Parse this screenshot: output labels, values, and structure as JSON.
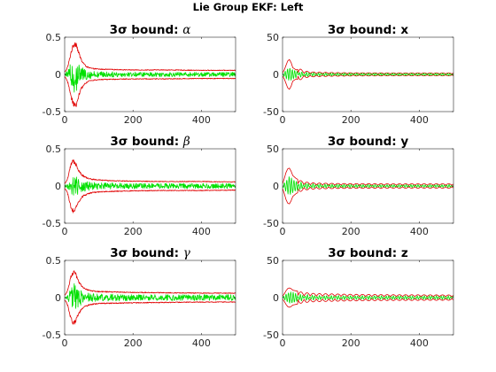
{
  "figure": {
    "title": "Lie Group EKF: Left"
  },
  "colors": {
    "bound": "#e00000",
    "error": "#00e000",
    "axes": "#262626",
    "background": "#ffffff"
  },
  "chart_data": [
    {
      "type": "line",
      "title_prefix": "3σ bound: ",
      "title_symbol": "α",
      "symbol_italic": true,
      "xlim": [
        0,
        500
      ],
      "ylim": [
        -0.5,
        0.5
      ],
      "xticks": [
        0,
        200,
        400
      ],
      "xtick_labels": [
        "0",
        "200",
        "400"
      ],
      "yticks": [
        -0.5,
        0,
        0.5
      ],
      "ytick_labels": [
        "-0.5",
        "0",
        "0.5"
      ],
      "bound": {
        "x": [
          0,
          5,
          10,
          15,
          20,
          25,
          30,
          35,
          40,
          50,
          60,
          70,
          80,
          100,
          150,
          200,
          300,
          400,
          500
        ],
        "y": [
          0.03,
          0.06,
          0.12,
          0.22,
          0.32,
          0.38,
          0.42,
          0.4,
          0.3,
          0.18,
          0.12,
          0.09,
          0.08,
          0.07,
          0.065,
          0.06,
          0.06,
          0.055,
          0.055
        ]
      },
      "error": {
        "x": [
          0,
          10,
          20,
          25,
          30,
          35,
          40,
          50,
          60,
          80,
          100,
          150,
          200,
          300,
          400,
          500
        ],
        "amp": [
          0.01,
          0.06,
          0.18,
          0.24,
          0.28,
          0.24,
          0.14,
          0.1,
          0.08,
          0.05,
          0.04,
          0.035,
          0.03,
          0.03,
          0.03,
          0.03
        ]
      },
      "style": "noisy"
    },
    {
      "type": "line",
      "title_prefix": "3σ bound: ",
      "title_symbol": "x",
      "symbol_italic": false,
      "xlim": [
        0,
        500
      ],
      "ylim": [
        -50,
        50
      ],
      "xticks": [
        0,
        200,
        400
      ],
      "xtick_labels": [
        "0",
        "200",
        "400"
      ],
      "yticks": [
        -50,
        0,
        50
      ],
      "ytick_labels": [
        "-50",
        "0",
        "50"
      ],
      "bound": {
        "x": [
          0,
          5,
          10,
          15,
          20,
          25,
          30,
          40,
          50,
          60,
          80,
          100,
          150,
          200,
          300,
          400,
          500
        ],
        "y": [
          2,
          6,
          12,
          18,
          20,
          16,
          9,
          6,
          8,
          5,
          3.5,
          3,
          2.5,
          2.2,
          2,
          2,
          2
        ]
      },
      "error": {
        "x": [
          0,
          10,
          20,
          30,
          40,
          60,
          80,
          100,
          200,
          300,
          500
        ],
        "amp": [
          1,
          6,
          10,
          7,
          5,
          4,
          3,
          2.5,
          2,
          1.8,
          1.8
        ]
      },
      "style": "oscillating"
    },
    {
      "type": "line",
      "title_prefix": "3σ bound: ",
      "title_symbol": "β",
      "symbol_italic": true,
      "xlim": [
        0,
        500
      ],
      "ylim": [
        -0.5,
        0.5
      ],
      "xticks": [
        0,
        200,
        400
      ],
      "xtick_labels": [
        "0",
        "200",
        "400"
      ],
      "yticks": [
        -0.5,
        0,
        0.5
      ],
      "ytick_labels": [
        "-0.5",
        "0",
        "0.5"
      ],
      "bound": {
        "x": [
          0,
          5,
          10,
          15,
          20,
          25,
          30,
          35,
          40,
          50,
          60,
          70,
          80,
          100,
          150,
          200,
          300,
          400,
          500
        ],
        "y": [
          0.03,
          0.06,
          0.12,
          0.22,
          0.3,
          0.33,
          0.32,
          0.28,
          0.22,
          0.15,
          0.12,
          0.1,
          0.09,
          0.08,
          0.07,
          0.065,
          0.06,
          0.06,
          0.055
        ]
      },
      "error": {
        "x": [
          0,
          10,
          20,
          25,
          30,
          35,
          40,
          50,
          60,
          80,
          100,
          150,
          200,
          300,
          400,
          500
        ],
        "amp": [
          0.01,
          0.05,
          0.12,
          0.15,
          0.16,
          0.14,
          0.1,
          0.08,
          0.07,
          0.05,
          0.045,
          0.04,
          0.035,
          0.035,
          0.035,
          0.035
        ]
      },
      "style": "noisy"
    },
    {
      "type": "line",
      "title_prefix": "3σ bound: ",
      "title_symbol": "y",
      "symbol_italic": false,
      "xlim": [
        0,
        500
      ],
      "ylim": [
        -50,
        50
      ],
      "xticks": [
        0,
        200,
        400
      ],
      "xtick_labels": [
        "0",
        "200",
        "400"
      ],
      "yticks": [
        -50,
        0,
        50
      ],
      "ytick_labels": [
        "-50",
        "0",
        "50"
      ],
      "bound": {
        "x": [
          0,
          5,
          10,
          15,
          20,
          25,
          30,
          40,
          50,
          60,
          80,
          100,
          150,
          200,
          300,
          400,
          500
        ],
        "y": [
          3,
          10,
          18,
          23,
          24,
          20,
          14,
          10,
          8,
          6,
          4.5,
          4,
          3.5,
          3.2,
          3,
          3,
          3
        ]
      },
      "error": {
        "x": [
          0,
          10,
          20,
          30,
          40,
          60,
          80,
          100,
          200,
          300,
          500
        ],
        "amp": [
          1,
          8,
          14,
          10,
          7,
          5,
          4,
          3,
          2.5,
          2.2,
          2.2
        ]
      },
      "style": "oscillating"
    },
    {
      "type": "line",
      "title_prefix": "3σ bound: ",
      "title_symbol": "γ",
      "symbol_italic": true,
      "xlim": [
        0,
        500
      ],
      "ylim": [
        -0.5,
        0.5
      ],
      "xticks": [
        0,
        200,
        400
      ],
      "xtick_labels": [
        "0",
        "200",
        "400"
      ],
      "yticks": [
        -0.5,
        0,
        0.5
      ],
      "ytick_labels": [
        "-0.5",
        "0",
        "0.5"
      ],
      "bound": {
        "x": [
          0,
          5,
          10,
          15,
          20,
          25,
          30,
          35,
          40,
          50,
          60,
          70,
          80,
          100,
          150,
          200,
          300,
          400,
          500
        ],
        "y": [
          0.03,
          0.06,
          0.12,
          0.22,
          0.3,
          0.34,
          0.33,
          0.28,
          0.22,
          0.15,
          0.12,
          0.1,
          0.09,
          0.08,
          0.075,
          0.07,
          0.065,
          0.06,
          0.06
        ]
      },
      "error": {
        "x": [
          0,
          10,
          20,
          25,
          30,
          35,
          40,
          50,
          60,
          80,
          100,
          150,
          200,
          300,
          400,
          500
        ],
        "amp": [
          0.01,
          0.05,
          0.13,
          0.18,
          0.2,
          0.17,
          0.12,
          0.1,
          0.08,
          0.06,
          0.05,
          0.045,
          0.04,
          0.04,
          0.04,
          0.04
        ]
      },
      "style": "noisy"
    },
    {
      "type": "line",
      "title_prefix": "3σ bound: ",
      "title_symbol": "z",
      "symbol_italic": false,
      "xlim": [
        0,
        500
      ],
      "ylim": [
        -50,
        50
      ],
      "xticks": [
        0,
        200,
        400
      ],
      "xtick_labels": [
        "0",
        "200",
        "400"
      ],
      "yticks": [
        -50,
        0,
        50
      ],
      "ytick_labels": [
        "-50",
        "0",
        "50"
      ],
      "bound": {
        "x": [
          0,
          5,
          10,
          15,
          20,
          25,
          30,
          40,
          50,
          60,
          80,
          100,
          150,
          200,
          300,
          400,
          500
        ],
        "y": [
          2,
          5,
          9,
          12,
          13,
          12,
          10,
          9,
          8,
          7,
          6,
          5.5,
          5,
          4.5,
          4,
          3.8,
          3.6
        ]
      },
      "error": {
        "x": [
          0,
          10,
          20,
          30,
          40,
          60,
          80,
          100,
          200,
          300,
          500
        ],
        "amp": [
          1,
          5,
          8,
          8,
          6,
          5,
          4,
          3.5,
          3,
          2.8,
          2.8
        ]
      },
      "style": "oscillating"
    }
  ]
}
